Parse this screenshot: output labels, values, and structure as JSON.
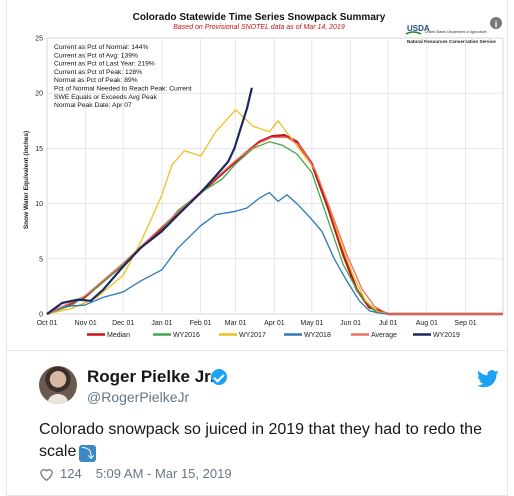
{
  "chart_data": {
    "type": "line",
    "title": "Colorado Statewide Time Series Snowpack Summary",
    "subtitle": "Based on Provisional SNOTEL data as of Mar 14, 2019",
    "ylabel": "Snow Water Equivalent (inches)",
    "xlabel": "",
    "ylim": [
      0,
      25
    ],
    "yticks": [
      "0",
      "5",
      "10",
      "15",
      "20",
      "25"
    ],
    "x_tick_labels": [
      "Oct 01",
      "Nov 01",
      "Dec 01",
      "Jan 01",
      "Feb 01",
      "Mar 01",
      "Apr 01",
      "May 01",
      "Jun 01",
      "Jul 01",
      "Aug 01",
      "Sep 01"
    ],
    "grid": true,
    "legend_position": "bottom",
    "agency": {
      "logo_text": "USDA",
      "dept": "United States Department of Agriculture",
      "service": "Natural Resources Conservation Service"
    },
    "info_lines": [
      "Current as Pct of Normal: 144%",
      "Current as Pct of Avg: 139%",
      "Current as Pct of Last Year: 219%",
      "Current as Pct of Peak: 128%",
      "Normal as Pct of Peak: 89%",
      "Pct of Normal Needed to Reach Peak: Current",
      "SWE Equals or Exceeds Avg Peak",
      "Normal Peak Date: Apr 07"
    ],
    "series": [
      {
        "name": "Median",
        "color": "#c0141b",
        "x": [
          0,
          30,
          61,
          92,
          123,
          151,
          170,
          180,
          190,
          200,
          212,
          225,
          237,
          248,
          258,
          273,
          365
        ],
        "y": [
          0,
          1.5,
          4.5,
          7.8,
          11,
          13.8,
          15.6,
          16.1,
          16.2,
          15.6,
          13.6,
          9.6,
          5.4,
          2.2,
          0.6,
          0,
          0
        ]
      },
      {
        "name": "WY2016",
        "color": "#40a848",
        "x": [
          0,
          20,
          40,
          61,
          75,
          92,
          105,
          123,
          140,
          151,
          165,
          178,
          188,
          200,
          212,
          225,
          237,
          250,
          262,
          273,
          365
        ],
        "y": [
          0,
          0.8,
          2.4,
          4.5,
          6.0,
          7.6,
          9.4,
          11,
          12.2,
          13.6,
          15.0,
          15.6,
          15.3,
          14.5,
          12.8,
          8.5,
          4.5,
          1.8,
          0.3,
          0,
          0
        ]
      },
      {
        "name": "WY2017",
        "color": "#f0c020",
        "x": [
          0,
          20,
          40,
          61,
          75,
          85,
          92,
          100,
          110,
          123,
          135,
          151,
          165,
          178,
          185,
          195,
          205,
          215,
          225,
          235,
          245,
          255,
          265,
          273,
          365
        ],
        "y": [
          0,
          0.5,
          1.5,
          3.5,
          6.5,
          9.0,
          10.8,
          13.5,
          14.8,
          14.3,
          16.5,
          18.5,
          17.0,
          16.5,
          17.5,
          16.0,
          14.5,
          13.0,
          10.0,
          6.5,
          3.5,
          1.2,
          0.2,
          0,
          0
        ]
      },
      {
        "name": "WY2018",
        "color": "#2a78b8",
        "x": [
          0,
          15,
          30,
          45,
          61,
          75,
          92,
          105,
          123,
          135,
          151,
          160,
          170,
          178,
          185,
          192,
          200,
          210,
          220,
          230,
          240,
          250,
          258,
          265,
          273,
          365
        ],
        "y": [
          0,
          0.7,
          0.8,
          1.5,
          2.0,
          3.0,
          4.0,
          6.0,
          8.0,
          9.0,
          9.3,
          9.6,
          10.5,
          11.0,
          10.2,
          10.8,
          10.0,
          8.8,
          7.5,
          5.0,
          3.0,
          1.2,
          0.3,
          0.1,
          0,
          0
        ]
      },
      {
        "name": "Average",
        "color": "#e87060",
        "x": [
          0,
          30,
          61,
          92,
          123,
          151,
          170,
          180,
          192,
          202,
          214,
          227,
          240,
          252,
          262,
          273,
          365
        ],
        "y": [
          0,
          1.6,
          4.6,
          7.9,
          11.1,
          13.9,
          15.5,
          16.0,
          16.0,
          15.3,
          13.2,
          9.4,
          5.4,
          2.3,
          0.7,
          0,
          0
        ]
      },
      {
        "name": "WY2019",
        "color": "#1a2a5e",
        "x": [
          0,
          12,
          25,
          35,
          45,
          61,
          75,
          92,
          105,
          123,
          135,
          145,
          150,
          155,
          160,
          164
        ],
        "y": [
          0,
          1.0,
          1.3,
          1.2,
          2.2,
          4.3,
          6.0,
          7.5,
          9.0,
          11.0,
          12.5,
          13.8,
          15.0,
          16.8,
          18.6,
          20.5
        ]
      }
    ]
  },
  "tweet": {
    "author_name": "Roger Pielke Jr.",
    "handle": "@RogerPielkeJr",
    "text": "Colorado snowpack so juiced in 2019 that they had to redo the scale",
    "arrow_emoji": "⤵",
    "like_count": "124",
    "timestamp": "5:09 AM - Mar 15, 2019",
    "icons": {
      "verified": "verified-badge-icon",
      "bird": "twitter-bird-icon",
      "heart": "heart-icon"
    },
    "colors": {
      "accent": "#1da1f2",
      "muted": "#657786",
      "text": "#14171a"
    }
  }
}
